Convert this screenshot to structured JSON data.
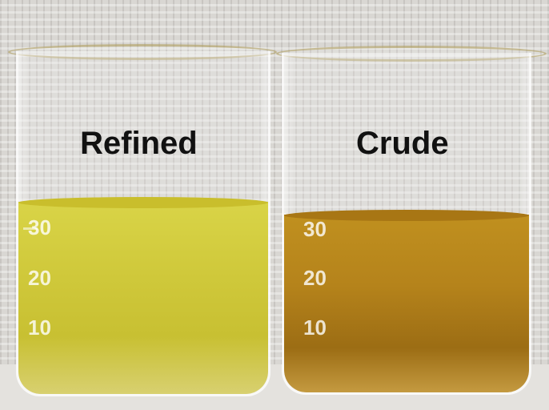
{
  "labels": {
    "left": "Refined",
    "right": "Crude"
  },
  "graduations": [
    "10",
    "20",
    "30"
  ],
  "colors": {
    "refined_oil": "#d4cc3a",
    "crude_oil": "#b5831b",
    "background": "#d9d7d3"
  }
}
